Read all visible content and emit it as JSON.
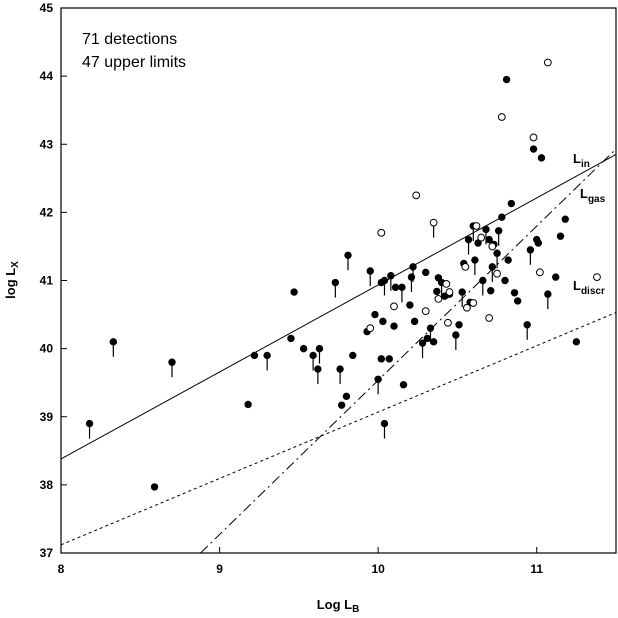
{
  "chart_data": {
    "type": "scatter",
    "xlabel": {
      "main": "Log L",
      "sub": "B"
    },
    "ylabel": {
      "main": "log L",
      "sub": "X"
    },
    "xlim": [
      8,
      11.5
    ],
    "ylim": [
      37,
      45
    ],
    "xticks": [
      "8",
      "9",
      "10",
      "11"
    ],
    "yticks": [
      "37",
      "38",
      "39",
      "40",
      "41",
      "42",
      "43",
      "44",
      "45"
    ],
    "annotations": [
      "71 detections",
      "47 upper limits"
    ],
    "lines": [
      {
        "label": "L",
        "sub": "in",
        "style": "solid",
        "x": [
          8,
          11.5
        ],
        "y": [
          38.38,
          42.85
        ]
      },
      {
        "label": "L",
        "sub": "gas",
        "style": "dashdot",
        "x": [
          8.88,
          11.5
        ],
        "y": [
          37.0,
          42.93
        ]
      },
      {
        "label": "L",
        "sub": "discr",
        "style": "dotted",
        "x": [
          8,
          11.5
        ],
        "y": [
          37.12,
          40.53
        ]
      }
    ],
    "series": [
      {
        "marker": "filled-circle",
        "points": [
          [
            8.18,
            38.9
          ],
          [
            8.33,
            40.1
          ],
          [
            8.59,
            37.97
          ],
          [
            8.7,
            39.8
          ],
          [
            9.18,
            39.18
          ],
          [
            9.22,
            39.9
          ],
          [
            9.3,
            39.9
          ],
          [
            9.45,
            40.15
          ],
          [
            9.47,
            40.83
          ],
          [
            9.53,
            40.0
          ],
          [
            9.59,
            39.9
          ],
          [
            9.62,
            39.7
          ],
          [
            9.63,
            40.0
          ],
          [
            9.73,
            40.97
          ],
          [
            9.76,
            39.7
          ],
          [
            9.77,
            39.17
          ],
          [
            9.8,
            39.3
          ],
          [
            9.81,
            41.37
          ],
          [
            9.84,
            39.9
          ],
          [
            9.93,
            40.25
          ],
          [
            9.95,
            41.14
          ],
          [
            9.98,
            40.5
          ],
          [
            10.0,
            39.55
          ],
          [
            10.02,
            39.85
          ],
          [
            10.02,
            40.97
          ],
          [
            10.03,
            40.4
          ],
          [
            10.04,
            41.0
          ],
          [
            10.04,
            38.9
          ],
          [
            10.07,
            39.85
          ],
          [
            10.08,
            41.07
          ],
          [
            10.1,
            40.33
          ],
          [
            10.11,
            40.9
          ],
          [
            10.15,
            40.9
          ],
          [
            10.16,
            39.47
          ],
          [
            10.2,
            40.64
          ],
          [
            10.21,
            41.05
          ],
          [
            10.22,
            41.2
          ],
          [
            10.23,
            40.4
          ],
          [
            10.28,
            40.08
          ],
          [
            10.3,
            41.12
          ],
          [
            10.31,
            40.15
          ],
          [
            10.33,
            40.3
          ],
          [
            10.35,
            40.1
          ],
          [
            10.37,
            40.84
          ],
          [
            10.38,
            41.04
          ],
          [
            10.4,
            40.97
          ],
          [
            10.42,
            40.77
          ],
          [
            10.45,
            40.8
          ],
          [
            10.49,
            40.2
          ],
          [
            10.51,
            40.35
          ],
          [
            10.53,
            40.83
          ],
          [
            10.54,
            41.25
          ],
          [
            10.56,
            40.6
          ],
          [
            10.57,
            41.6
          ],
          [
            10.58,
            40.68
          ],
          [
            10.6,
            41.8
          ],
          [
            10.61,
            41.3
          ],
          [
            10.63,
            41.55
          ],
          [
            10.66,
            41.0
          ],
          [
            10.68,
            41.75
          ],
          [
            10.7,
            41.6
          ],
          [
            10.71,
            40.85
          ],
          [
            10.72,
            41.2
          ],
          [
            10.73,
            41.53
          ],
          [
            10.75,
            41.4
          ],
          [
            10.76,
            41.73
          ],
          [
            10.78,
            41.93
          ],
          [
            10.8,
            41.0
          ],
          [
            10.81,
            43.95
          ],
          [
            10.82,
            41.3
          ],
          [
            10.84,
            42.13
          ],
          [
            10.86,
            40.82
          ],
          [
            10.88,
            40.7
          ],
          [
            10.94,
            40.35
          ],
          [
            10.96,
            41.45
          ],
          [
            10.98,
            42.93
          ],
          [
            11.0,
            41.6
          ],
          [
            11.01,
            41.55
          ],
          [
            11.03,
            42.8
          ],
          [
            11.07,
            40.8
          ],
          [
            11.12,
            41.05
          ],
          [
            11.15,
            41.65
          ],
          [
            11.18,
            41.9
          ],
          [
            11.25,
            40.1
          ]
        ]
      },
      {
        "marker": "open-circle",
        "points": [
          [
            9.95,
            40.3
          ],
          [
            10.02,
            41.7
          ],
          [
            10.1,
            40.62
          ],
          [
            10.24,
            42.25
          ],
          [
            10.3,
            40.55
          ],
          [
            10.35,
            41.85
          ],
          [
            10.38,
            40.73
          ],
          [
            10.43,
            40.95
          ],
          [
            10.45,
            40.83
          ],
          [
            10.44,
            40.38
          ],
          [
            10.55,
            41.2
          ],
          [
            10.56,
            40.6
          ],
          [
            10.6,
            40.67
          ],
          [
            10.62,
            41.8
          ],
          [
            10.65,
            41.63
          ],
          [
            10.7,
            40.45
          ],
          [
            10.72,
            41.5
          ],
          [
            10.75,
            41.1
          ],
          [
            10.78,
            43.4
          ],
          [
            10.98,
            43.1
          ],
          [
            11.02,
            41.12
          ],
          [
            11.07,
            44.2
          ],
          [
            11.38,
            41.05
          ]
        ]
      }
    ],
    "upper_limit_arrows": [
      [
        8.18,
        38.9
      ],
      [
        8.33,
        40.1
      ],
      [
        8.7,
        39.8
      ],
      [
        9.3,
        39.9
      ],
      [
        9.59,
        39.9
      ],
      [
        9.62,
        39.7
      ],
      [
        9.63,
        40.0
      ],
      [
        9.73,
        40.97
      ],
      [
        9.76,
        39.7
      ],
      [
        9.81,
        41.37
      ],
      [
        9.95,
        41.14
      ],
      [
        10.0,
        39.55
      ],
      [
        10.04,
        41.0
      ],
      [
        10.04,
        38.9
      ],
      [
        10.08,
        41.07
      ],
      [
        10.15,
        40.9
      ],
      [
        10.21,
        41.05
      ],
      [
        10.22,
        41.2
      ],
      [
        10.28,
        40.08
      ],
      [
        10.33,
        40.3
      ],
      [
        10.35,
        41.85
      ],
      [
        10.4,
        40.97
      ],
      [
        10.49,
        40.2
      ],
      [
        10.53,
        40.83
      ],
      [
        10.57,
        41.6
      ],
      [
        10.6,
        41.8
      ],
      [
        10.61,
        41.3
      ],
      [
        10.66,
        41.0
      ],
      [
        10.68,
        41.75
      ],
      [
        10.72,
        41.2
      ],
      [
        10.75,
        41.4
      ],
      [
        10.76,
        41.73
      ],
      [
        10.94,
        40.35
      ],
      [
        10.96,
        41.45
      ],
      [
        11.07,
        40.8
      ]
    ]
  }
}
